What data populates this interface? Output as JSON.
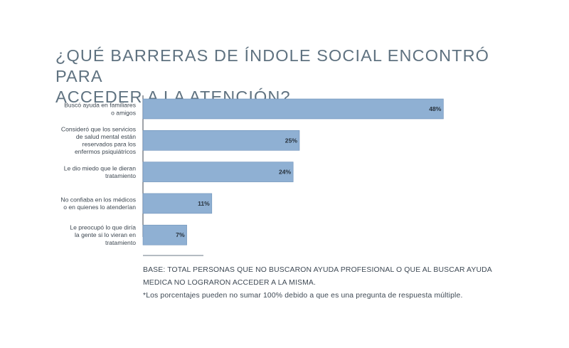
{
  "chart_data": {
    "type": "bar",
    "orientation": "horizontal",
    "title": "¿QUÉ BARRERAS DE ÍNDOLE SOCIAL ENCONTRÓ PARA ACCEDER A LA ATENCIÓN?",
    "title_lines": [
      "¿QUÉ BARRERAS DE ÍNDOLE SOCIAL ENCONTRÓ PARA",
      "ACCEDER A LA ATENCIÓN?"
    ],
    "categories": [
      "Buscó ayuda en familiares o amigos",
      "Consideró que los servicios de salud mental están reservados para los enfermos psiquiátricos",
      "Le dio miedo que le dieran tratamiento",
      "No confiaba en los médicos o en quienes lo atenderían",
      "Le preocupó lo que diría la gente si lo vieran en tratamiento"
    ],
    "category_lines": [
      [
        "Buscó ayuda en familiares",
        "o amigos"
      ],
      [
        "Consideró que los servicios",
        "de salud mental están",
        "reservados para los",
        "enfermos psiquiátricos"
      ],
      [
        "Le dio miedo que le dieran",
        "tratamiento"
      ],
      [
        "No confiaba en los médicos",
        "o en quienes lo atenderían"
      ],
      [
        "Le preocupó lo que diría",
        "la gente si lo vieran en",
        "tratamiento"
      ]
    ],
    "values": [
      48,
      25,
      24,
      11,
      7
    ],
    "value_labels": [
      "48%",
      "25%",
      "24%",
      "11%",
      "7%"
    ],
    "unit": "%",
    "xlim": [
      0,
      50
    ],
    "grid": false,
    "legend": "none",
    "bar_color": "#8fb0d3"
  },
  "footnote": {
    "base_lines": [
      "BASE: TOTAL PERSONAS QUE NO BUSCARON AYUDA PROFESIONAL O QUE AL BUSCAR AYUDA",
      "MEDICA NO LOGRARON ACCEDER A LA MISMA."
    ],
    "note": "*Los porcentajes pueden no sumar 100% debido a que es una pregunta de respuesta múltiple."
  }
}
